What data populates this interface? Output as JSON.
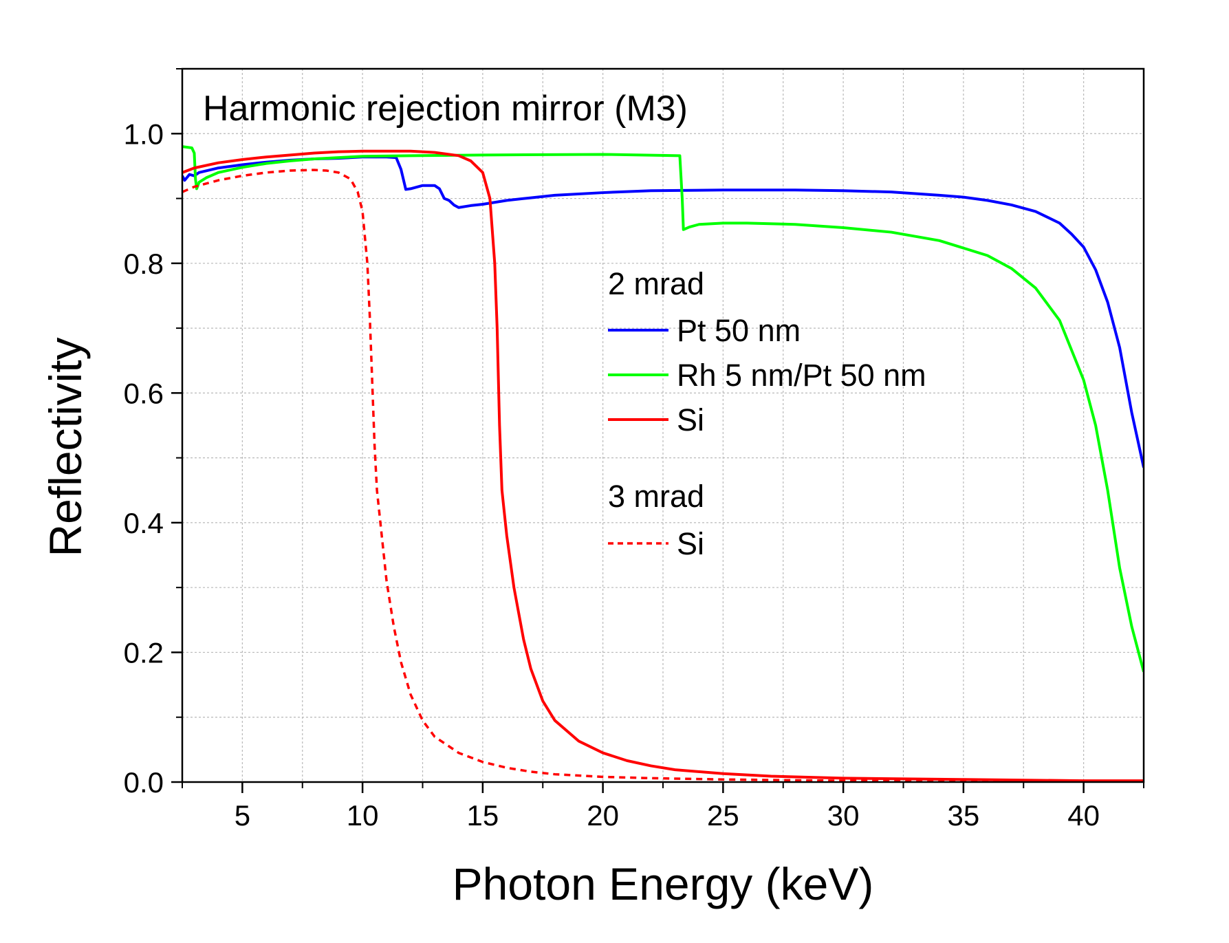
{
  "chart_data": {
    "type": "line",
    "title": "Harmonic rejection mirror (M3)",
    "xlabel": "Photon Energy (keV)",
    "ylabel": "Reflectivity",
    "xlim": [
      2.5,
      42.5
    ],
    "ylim": [
      0.0,
      1.1
    ],
    "xticks": [
      5,
      10,
      15,
      20,
      25,
      30,
      35,
      40
    ],
    "xtick_labels": [
      "5",
      "10",
      "15",
      "20",
      "25",
      "30",
      "35",
      "40"
    ],
    "yticks": [
      0.0,
      0.2,
      0.4,
      0.6,
      0.8,
      1.0
    ],
    "ytick_labels": [
      "0.0",
      "0.2",
      "0.4",
      "0.6",
      "0.8",
      "1.0"
    ],
    "grid": true,
    "legend_position": "center-right",
    "legend_groups": [
      {
        "heading": "2 mrad",
        "entries": [
          {
            "label": "Pt 50 nm",
            "series": 0
          },
          {
            "label": "Rh 5 nm/Pt 50 nm",
            "series": 1
          },
          {
            "label": "Si",
            "series": 2
          }
        ]
      },
      {
        "heading": "3 mrad",
        "entries": [
          {
            "label": "Si",
            "series": 3
          }
        ]
      }
    ],
    "series": [
      {
        "color": "#0000ff",
        "style": "solid",
        "points": [
          [
            2.5,
            0.935
          ],
          [
            2.6,
            0.928
          ],
          [
            2.8,
            0.937
          ],
          [
            3.0,
            0.935
          ],
          [
            3.2,
            0.94
          ],
          [
            4,
            0.947
          ],
          [
            5,
            0.952
          ],
          [
            6,
            0.956
          ],
          [
            7,
            0.959
          ],
          [
            8,
            0.961
          ],
          [
            9,
            0.962
          ],
          [
            10,
            0.964
          ],
          [
            11,
            0.964
          ],
          [
            11.4,
            0.963
          ],
          [
            11.6,
            0.945
          ],
          [
            11.8,
            0.914
          ],
          [
            12.0,
            0.915
          ],
          [
            12.5,
            0.92
          ],
          [
            13.0,
            0.92
          ],
          [
            13.2,
            0.915
          ],
          [
            13.4,
            0.9
          ],
          [
            13.6,
            0.897
          ],
          [
            13.8,
            0.89
          ],
          [
            14.0,
            0.886
          ],
          [
            14.5,
            0.889
          ],
          [
            15,
            0.891
          ],
          [
            16,
            0.897
          ],
          [
            17,
            0.901
          ],
          [
            18,
            0.905
          ],
          [
            20,
            0.909
          ],
          [
            22,
            0.912
          ],
          [
            25,
            0.913
          ],
          [
            28,
            0.913
          ],
          [
            30,
            0.912
          ],
          [
            32,
            0.91
          ],
          [
            34,
            0.905
          ],
          [
            35,
            0.902
          ],
          [
            36,
            0.897
          ],
          [
            37,
            0.89
          ],
          [
            38,
            0.88
          ],
          [
            39,
            0.862
          ],
          [
            39.5,
            0.845
          ],
          [
            40,
            0.825
          ],
          [
            40.5,
            0.79
          ],
          [
            41,
            0.74
          ],
          [
            41.5,
            0.67
          ],
          [
            42,
            0.57
          ],
          [
            42.5,
            0.485
          ]
        ]
      },
      {
        "color": "#00ff00",
        "style": "solid",
        "points": [
          [
            2.5,
            0.98
          ],
          [
            2.9,
            0.978
          ],
          [
            3.0,
            0.97
          ],
          [
            3.05,
            0.93
          ],
          [
            3.1,
            0.915
          ],
          [
            3.2,
            0.925
          ],
          [
            3.5,
            0.932
          ],
          [
            4,
            0.94
          ],
          [
            5,
            0.948
          ],
          [
            6,
            0.954
          ],
          [
            7,
            0.958
          ],
          [
            8,
            0.961
          ],
          [
            9,
            0.963
          ],
          [
            10,
            0.965
          ],
          [
            12,
            0.966
          ],
          [
            15,
            0.967
          ],
          [
            20,
            0.968
          ],
          [
            23.2,
            0.966
          ],
          [
            23.3,
            0.9
          ],
          [
            23.35,
            0.852
          ],
          [
            23.6,
            0.856
          ],
          [
            24,
            0.86
          ],
          [
            25,
            0.862
          ],
          [
            26,
            0.862
          ],
          [
            28,
            0.86
          ],
          [
            30,
            0.855
          ],
          [
            32,
            0.848
          ],
          [
            34,
            0.835
          ],
          [
            36,
            0.812
          ],
          [
            37,
            0.792
          ],
          [
            38,
            0.762
          ],
          [
            39,
            0.712
          ],
          [
            40,
            0.62
          ],
          [
            40.5,
            0.55
          ],
          [
            41,
            0.45
          ],
          [
            41.5,
            0.33
          ],
          [
            42,
            0.24
          ],
          [
            42.5,
            0.17
          ]
        ]
      },
      {
        "color": "#ff0000",
        "style": "solid",
        "points": [
          [
            2.5,
            0.94
          ],
          [
            3,
            0.947
          ],
          [
            4,
            0.955
          ],
          [
            5,
            0.96
          ],
          [
            6,
            0.964
          ],
          [
            7,
            0.967
          ],
          [
            8,
            0.97
          ],
          [
            9,
            0.972
          ],
          [
            10,
            0.973
          ],
          [
            11,
            0.973
          ],
          [
            12,
            0.973
          ],
          [
            13,
            0.971
          ],
          [
            14,
            0.966
          ],
          [
            14.5,
            0.958
          ],
          [
            15,
            0.94
          ],
          [
            15.3,
            0.9
          ],
          [
            15.5,
            0.8
          ],
          [
            15.6,
            0.7
          ],
          [
            15.7,
            0.55
          ],
          [
            15.8,
            0.45
          ],
          [
            16,
            0.38
          ],
          [
            16.3,
            0.3
          ],
          [
            16.7,
            0.22
          ],
          [
            17,
            0.175
          ],
          [
            17.5,
            0.125
          ],
          [
            18,
            0.095
          ],
          [
            19,
            0.063
          ],
          [
            20,
            0.045
          ],
          [
            21,
            0.033
          ],
          [
            22,
            0.025
          ],
          [
            23,
            0.019
          ],
          [
            25,
            0.013
          ],
          [
            27,
            0.009
          ],
          [
            30,
            0.006
          ],
          [
            35,
            0.004
          ],
          [
            40,
            0.002
          ],
          [
            42.5,
            0.002
          ]
        ]
      },
      {
        "color": "#ff0000",
        "style": "dashed",
        "points": [
          [
            2.5,
            0.91
          ],
          [
            3,
            0.918
          ],
          [
            4,
            0.928
          ],
          [
            5,
            0.935
          ],
          [
            6,
            0.94
          ],
          [
            7,
            0.943
          ],
          [
            8,
            0.944
          ],
          [
            8.5,
            0.943
          ],
          [
            9,
            0.94
          ],
          [
            9.5,
            0.93
          ],
          [
            9.8,
            0.91
          ],
          [
            10.0,
            0.88
          ],
          [
            10.2,
            0.8
          ],
          [
            10.3,
            0.72
          ],
          [
            10.4,
            0.62
          ],
          [
            10.5,
            0.52
          ],
          [
            10.6,
            0.45
          ],
          [
            10.8,
            0.38
          ],
          [
            11,
            0.31
          ],
          [
            11.3,
            0.24
          ],
          [
            11.6,
            0.185
          ],
          [
            12,
            0.135
          ],
          [
            12.5,
            0.095
          ],
          [
            13,
            0.07
          ],
          [
            14,
            0.045
          ],
          [
            15,
            0.031
          ],
          [
            16,
            0.022
          ],
          [
            17,
            0.016
          ],
          [
            18,
            0.012
          ],
          [
            20,
            0.008
          ],
          [
            22,
            0.006
          ],
          [
            25,
            0.004
          ],
          [
            30,
            0.002
          ],
          [
            35,
            0.001
          ],
          [
            42.5,
            0.001
          ]
        ]
      }
    ]
  }
}
